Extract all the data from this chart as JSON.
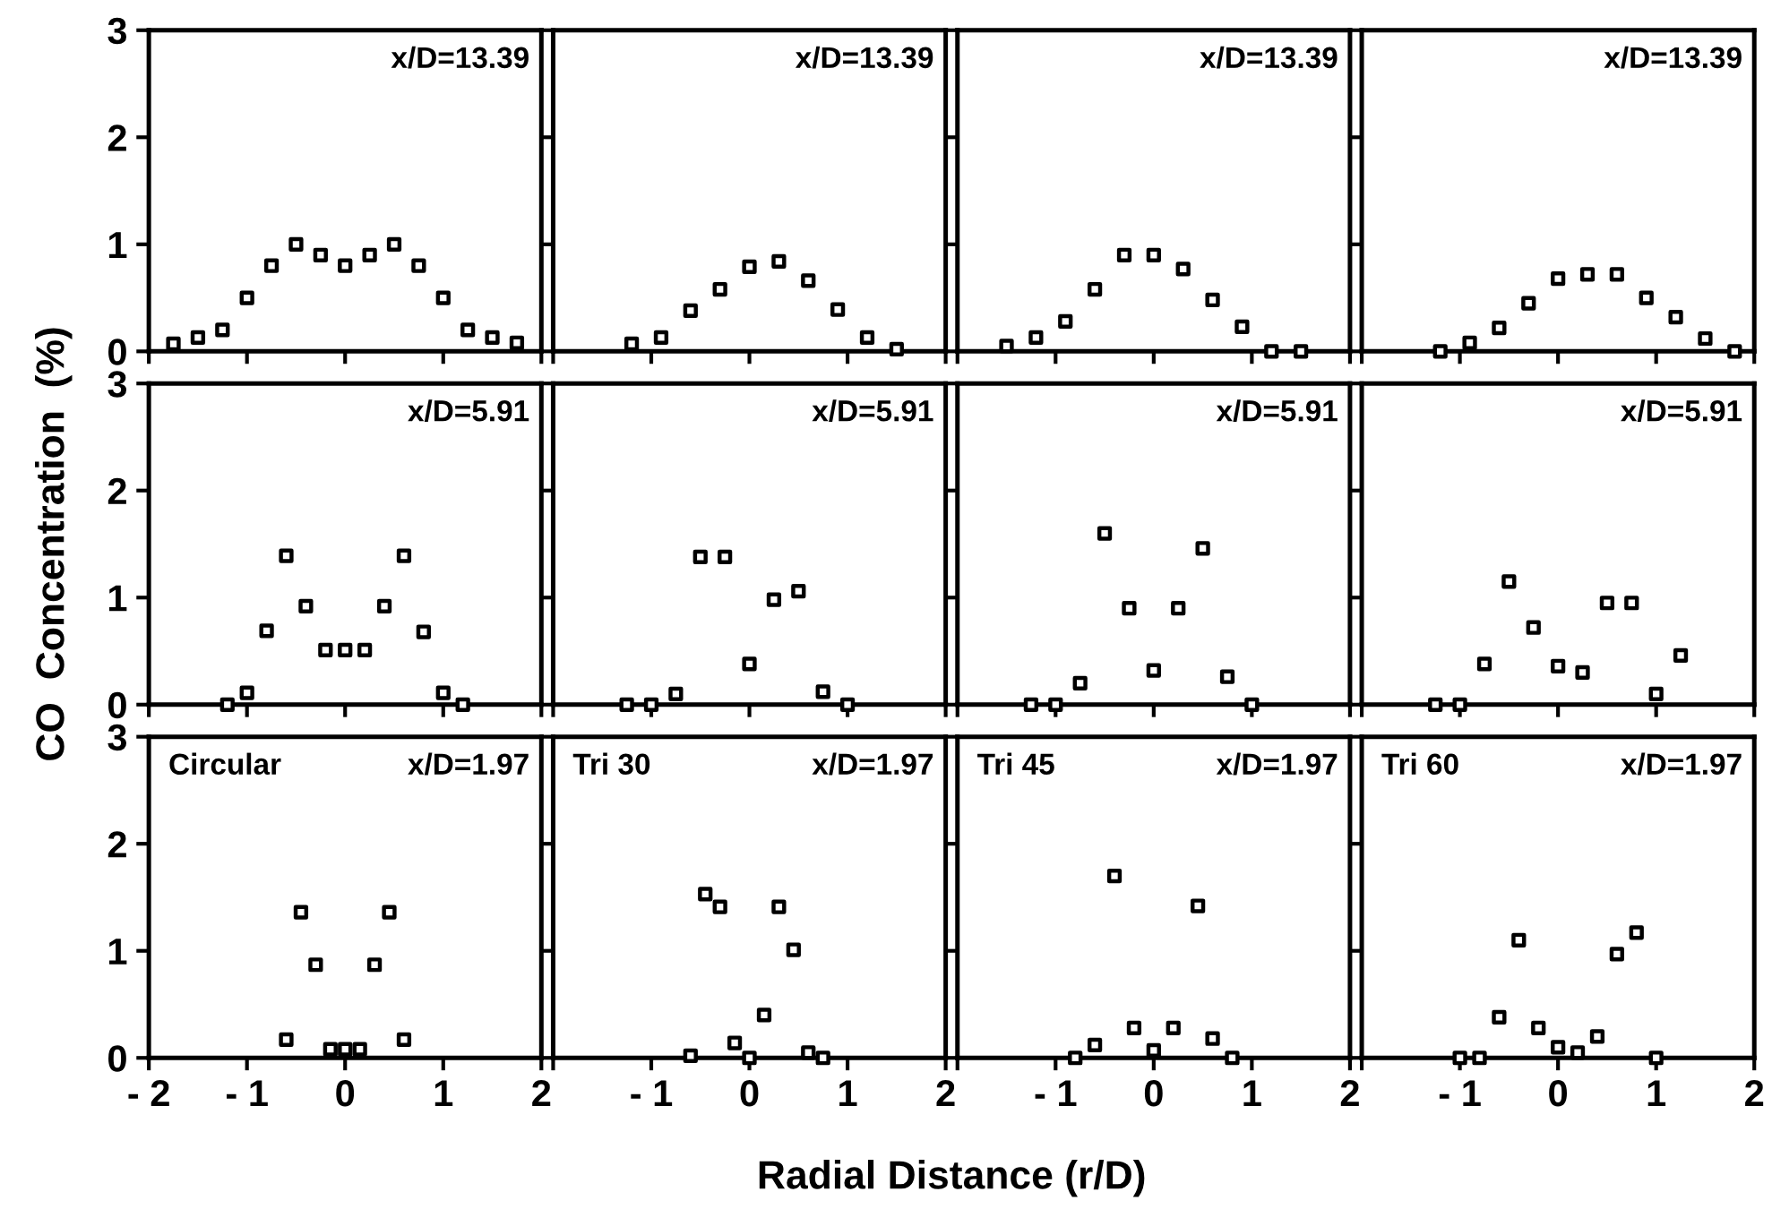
{
  "chart_data": [
    {
      "type": "scatter",
      "x": [
        -1.75,
        -1.5,
        -1.25,
        -1,
        -0.75,
        -0.5,
        -0.25,
        0,
        0.25,
        0.5,
        0.75,
        1,
        1.25,
        1.5,
        1.75
      ],
      "values": [
        0.07,
        0.13,
        0.2,
        0.5,
        0.8,
        1.0,
        0.9,
        0.8,
        0.9,
        1.0,
        0.8,
        0.5,
        0.2,
        0.13,
        0.08
      ],
      "color": "#000000",
      "marker": "square",
      "xlim": [
        -2,
        2
      ],
      "ylim": [
        0,
        3
      ],
      "xticks": [
        {
          "value": -2,
          "label": null
        },
        {
          "value": -1,
          "label": null
        },
        {
          "value": 0,
          "label": null
        },
        {
          "value": 1,
          "label": null
        },
        {
          "value": 2,
          "label": null
        }
      ],
      "yticks": [
        0,
        1,
        2,
        3
      ],
      "tick_labels": "y",
      "annotations": [
        "x/D=13.39"
      ]
    },
    {
      "type": "scatter",
      "x": [
        -1.2,
        -0.9,
        -0.6,
        -0.3,
        0,
        0.3,
        0.6,
        0.9,
        1.2,
        1.5
      ],
      "values": [
        0.07,
        0.13,
        0.38,
        0.58,
        0.79,
        0.84,
        0.66,
        0.39,
        0.13,
        0.02
      ],
      "color": "#000000",
      "marker": "square",
      "xlim": [
        -2,
        2
      ],
      "ylim": [
        0,
        3
      ],
      "xticks": [
        {
          "value": -2,
          "label": null
        },
        {
          "value": -1,
          "label": null
        },
        {
          "value": 0,
          "label": null
        },
        {
          "value": 1,
          "label": null
        },
        {
          "value": 2,
          "label": null
        }
      ],
      "yticks": [
        {
          "value": 0,
          "label": null
        },
        {
          "value": 1,
          "label": null
        },
        {
          "value": 2,
          "label": null
        },
        {
          "value": 3,
          "label": null
        }
      ],
      "tick_labels": false,
      "annotations": [
        "x/D=13.39"
      ]
    },
    {
      "type": "scatter",
      "x": [
        -1.5,
        -1.2,
        -0.9,
        -0.6,
        -0.3,
        0,
        0.3,
        0.6,
        0.9,
        1.2,
        1.5
      ],
      "values": [
        0.05,
        0.13,
        0.28,
        0.58,
        0.9,
        0.9,
        0.77,
        0.48,
        0.23,
        0,
        0
      ],
      "color": "#000000",
      "marker": "square",
      "xlim": [
        -2,
        2
      ],
      "ylim": [
        0,
        3
      ],
      "xticks": [
        {
          "value": -2,
          "label": null
        },
        {
          "value": -1,
          "label": null
        },
        {
          "value": 0,
          "label": null
        },
        {
          "value": 1,
          "label": null
        },
        {
          "value": 2,
          "label": null
        }
      ],
      "yticks": [
        {
          "value": 0,
          "label": null
        },
        {
          "value": 1,
          "label": null
        },
        {
          "value": 2,
          "label": null
        },
        {
          "value": 3,
          "label": null
        }
      ],
      "tick_labels": false,
      "annotations": [
        "x/D=13.39"
      ]
    },
    {
      "type": "scatter",
      "x": [
        -1.2,
        -0.9,
        -0.6,
        -0.3,
        0,
        0.3,
        0.6,
        0.9,
        1.2,
        1.5,
        1.8
      ],
      "values": [
        0,
        0.08,
        0.22,
        0.45,
        0.68,
        0.72,
        0.72,
        0.5,
        0.32,
        0.12,
        0
      ],
      "color": "#000000",
      "marker": "square",
      "xlim": [
        -2,
        2
      ],
      "ylim": [
        0,
        3
      ],
      "xticks": [
        {
          "value": -2,
          "label": null
        },
        {
          "value": -1,
          "label": null
        },
        {
          "value": 0,
          "label": null
        },
        {
          "value": 1,
          "label": null
        },
        {
          "value": 2,
          "label": null
        }
      ],
      "yticks": [
        {
          "value": 0,
          "label": null
        },
        {
          "value": 1,
          "label": null
        },
        {
          "value": 2,
          "label": null
        },
        {
          "value": 3,
          "label": null
        }
      ],
      "tick_labels": false,
      "annotations": [
        "x/D=13.39"
      ]
    },
    {
      "type": "scatter",
      "x": [
        -1.2,
        -1.0,
        -0.8,
        -0.6,
        -0.4,
        -0.2,
        0,
        0.2,
        0.4,
        0.6,
        0.8,
        1.0,
        1.2
      ],
      "values": [
        0,
        0.11,
        0.69,
        1.39,
        0.92,
        0.51,
        0.51,
        0.51,
        0.92,
        1.39,
        0.68,
        0.11,
        0
      ],
      "color": "#000000",
      "marker": "square",
      "xlim": [
        -2,
        2
      ],
      "ylim": [
        0,
        3
      ],
      "xticks": [
        {
          "value": -2,
          "label": null
        },
        {
          "value": -1,
          "label": null
        },
        {
          "value": 0,
          "label": null
        },
        {
          "value": 1,
          "label": null
        },
        {
          "value": 2,
          "label": null
        }
      ],
      "yticks": [
        0,
        1,
        2,
        3
      ],
      "tick_labels": "y",
      "ylabel": "CO  Concentration  (%)",
      "annotations": [
        "x/D=5.91"
      ]
    },
    {
      "type": "scatter",
      "x": [
        -1.25,
        -1.0,
        -0.75,
        -0.5,
        -0.25,
        0,
        0.25,
        0.5,
        0.75,
        1.0
      ],
      "values": [
        0,
        0,
        0.1,
        1.38,
        1.38,
        0.38,
        0.98,
        1.06,
        0.12,
        0
      ],
      "color": "#000000",
      "marker": "square",
      "xlim": [
        -2,
        2
      ],
      "ylim": [
        0,
        3
      ],
      "xticks": [
        {
          "value": -2,
          "label": null
        },
        {
          "value": -1,
          "label": null
        },
        {
          "value": 0,
          "label": null
        },
        {
          "value": 1,
          "label": null
        },
        {
          "value": 2,
          "label": null
        }
      ],
      "yticks": [
        {
          "value": 0,
          "label": null
        },
        {
          "value": 1,
          "label": null
        },
        {
          "value": 2,
          "label": null
        },
        {
          "value": 3,
          "label": null
        }
      ],
      "tick_labels": false,
      "annotations": [
        "x/D=5.91"
      ]
    },
    {
      "type": "scatter",
      "x": [
        -1.25,
        -1.0,
        -0.75,
        -0.5,
        -0.25,
        0,
        0.25,
        0.5,
        0.75,
        1.0
      ],
      "values": [
        0,
        0,
        0.2,
        1.6,
        0.9,
        0.32,
        0.9,
        1.46,
        0.26,
        0
      ],
      "color": "#000000",
      "marker": "square",
      "xlim": [
        -2,
        2
      ],
      "ylim": [
        0,
        3
      ],
      "xticks": [
        {
          "value": -2,
          "label": null
        },
        {
          "value": -1,
          "label": null
        },
        {
          "value": 0,
          "label": null
        },
        {
          "value": 1,
          "label": null
        },
        {
          "value": 2,
          "label": null
        }
      ],
      "yticks": [
        {
          "value": 0,
          "label": null
        },
        {
          "value": 1,
          "label": null
        },
        {
          "value": 2,
          "label": null
        },
        {
          "value": 3,
          "label": null
        }
      ],
      "tick_labels": false,
      "annotations": [
        "x/D=5.91"
      ]
    },
    {
      "type": "scatter",
      "x": [
        -1.25,
        -1.0,
        -0.75,
        -0.5,
        -0.25,
        0,
        0.25,
        0.5,
        0.75,
        1.0,
        1.25
      ],
      "values": [
        0,
        0,
        0.38,
        1.15,
        0.72,
        0.36,
        0.3,
        0.95,
        0.95,
        0.1,
        0.46
      ],
      "color": "#000000",
      "marker": "square",
      "xlim": [
        -2,
        2
      ],
      "ylim": [
        0,
        3
      ],
      "xticks": [
        {
          "value": -2,
          "label": null
        },
        {
          "value": -1,
          "label": null
        },
        {
          "value": 0,
          "label": null
        },
        {
          "value": 1,
          "label": null
        },
        {
          "value": 2,
          "label": null
        }
      ],
      "yticks": [
        {
          "value": 0,
          "label": null
        },
        {
          "value": 1,
          "label": null
        },
        {
          "value": 2,
          "label": null
        },
        {
          "value": 3,
          "label": null
        }
      ],
      "tick_labels": false,
      "annotations": [
        "x/D=5.91"
      ]
    },
    {
      "type": "scatter",
      "x": [
        -0.6,
        -0.45,
        -0.3,
        -0.15,
        0,
        0.15,
        0.3,
        0.45,
        0.6
      ],
      "values": [
        0.17,
        1.36,
        0.87,
        0.08,
        0.08,
        0.08,
        0.87,
        1.36,
        0.17
      ],
      "color": "#000000",
      "marker": "square",
      "xlim": [
        -2,
        2
      ],
      "ylim": [
        0,
        3
      ],
      "xticks": [
        -2,
        -1,
        0,
        1,
        2
      ],
      "yticks": [
        0,
        1,
        2,
        3
      ],
      "annotations": [
        "x/D=1.97",
        "Circular"
      ]
    },
    {
      "type": "scatter",
      "x": [
        -0.6,
        -0.45,
        -0.3,
        -0.15,
        0,
        0.15,
        0.3,
        0.45,
        0.6,
        0.75
      ],
      "values": [
        0.02,
        1.53,
        1.41,
        0.14,
        0,
        0.4,
        1.41,
        1.01,
        0.05,
        0
      ],
      "color": "#000000",
      "marker": "square",
      "xlim": [
        -2,
        2
      ],
      "ylim": [
        0,
        3
      ],
      "xticks": [
        {
          "value": -2,
          "label": null
        },
        -1,
        0,
        1,
        2
      ],
      "yticks": [
        {
          "value": 0,
          "label": null
        },
        {
          "value": 1,
          "label": null
        },
        {
          "value": 2,
          "label": null
        },
        {
          "value": 3,
          "label": null
        }
      ],
      "tick_labels": "x",
      "xlabel": "Radial Distance (r/D)",
      "annotations": [
        "x/D=1.97",
        "Tri 30"
      ]
    },
    {
      "type": "scatter",
      "x": [
        -0.8,
        -0.6,
        -0.4,
        -0.2,
        0,
        0.2,
        0.45,
        0.6,
        0.8
      ],
      "values": [
        0,
        0.12,
        1.7,
        0.28,
        0.07,
        0.28,
        1.42,
        0.18,
        0
      ],
      "color": "#000000",
      "marker": "square",
      "xlim": [
        -2,
        2
      ],
      "ylim": [
        0,
        3
      ],
      "xticks": [
        {
          "value": -2,
          "label": null
        },
        -1,
        0,
        1,
        2
      ],
      "yticks": [
        {
          "value": 0,
          "label": null
        },
        {
          "value": 1,
          "label": null
        },
        {
          "value": 2,
          "label": null
        },
        {
          "value": 3,
          "label": null
        }
      ],
      "tick_labels": "x",
      "annotations": [
        "x/D=1.97",
        "Tri 45"
      ]
    },
    {
      "type": "scatter",
      "x": [
        -1.0,
        -0.8,
        -0.6,
        -0.4,
        -0.2,
        0,
        0.2,
        0.4,
        0.6,
        0.8,
        1.0
      ],
      "values": [
        0,
        0,
        0.38,
        1.1,
        0.28,
        0.1,
        0.05,
        0.2,
        0.97,
        1.17,
        0
      ],
      "color": "#000000",
      "marker": "square",
      "xlim": [
        -2,
        2
      ],
      "ylim": [
        0,
        3
      ],
      "xticks": [
        {
          "value": -2,
          "label": null
        },
        -1,
        0,
        1,
        2
      ],
      "yticks": [
        {
          "value": 0,
          "label": null
        },
        {
          "value": 1,
          "label": null
        },
        {
          "value": 2,
          "label": null
        },
        {
          "value": 3,
          "label": null
        }
      ],
      "tick_labels": "x",
      "annotations": [
        "x/D=1.97",
        "Tri 60"
      ]
    }
  ]
}
